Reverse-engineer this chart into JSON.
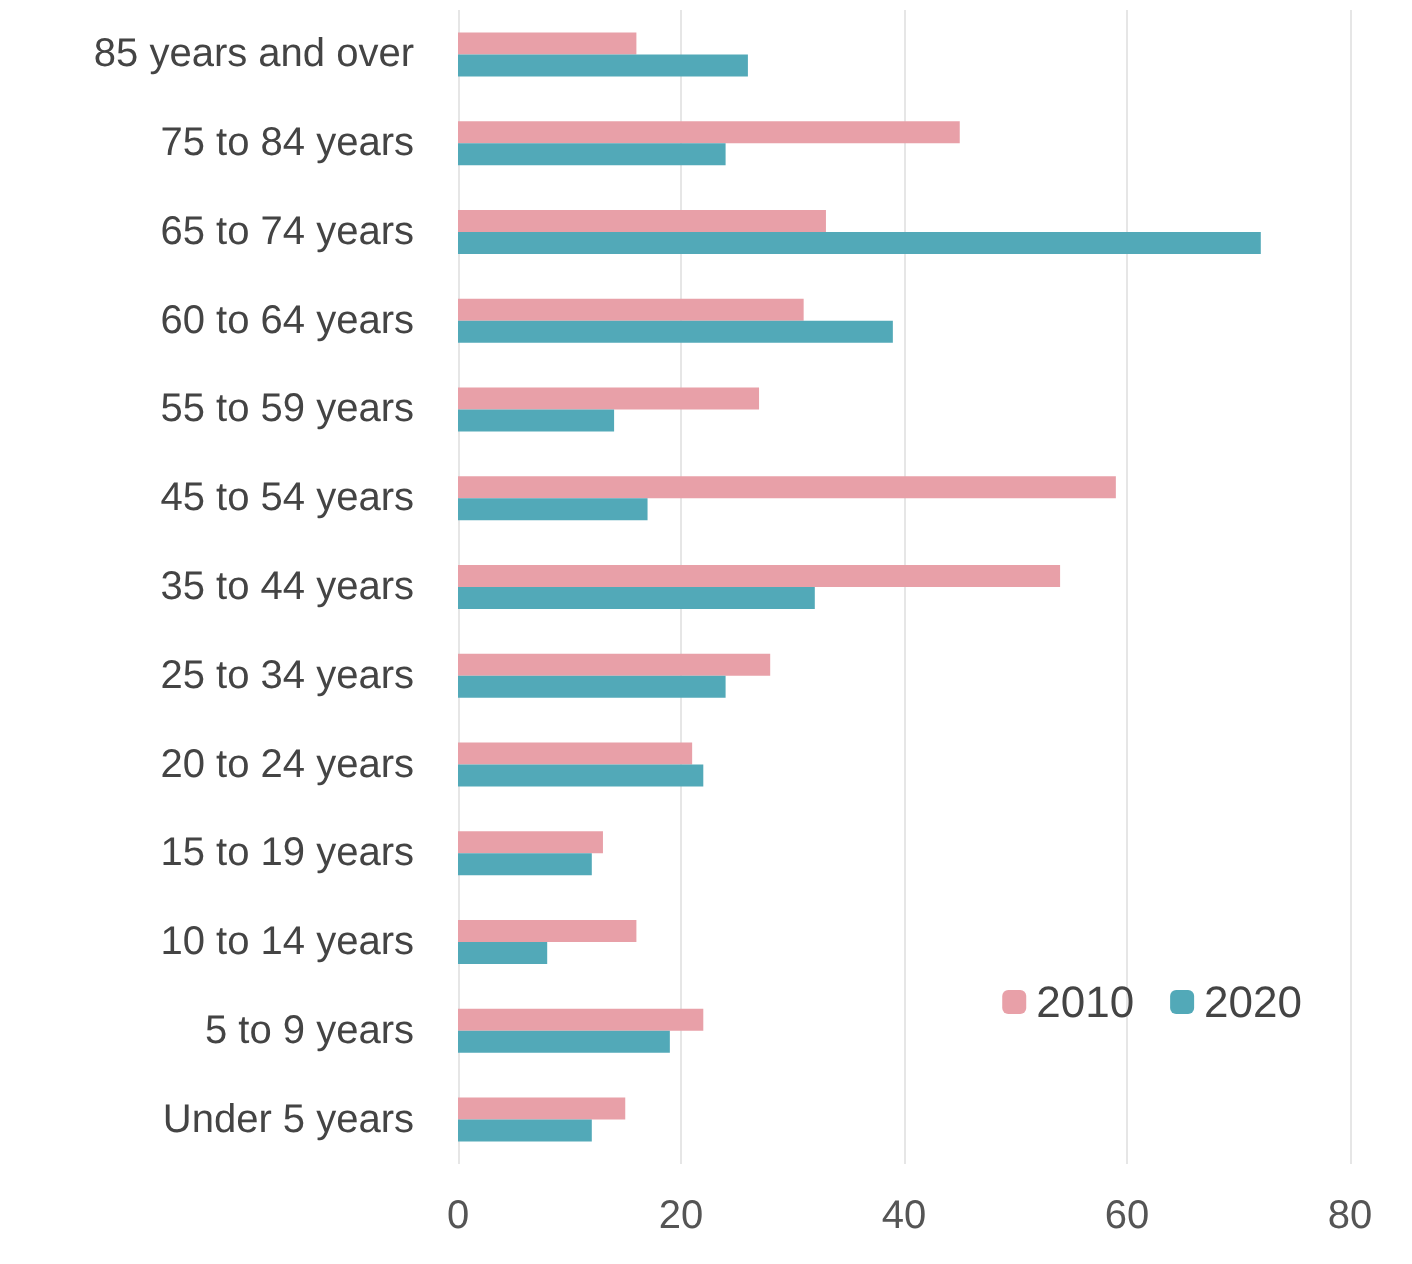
{
  "chart_data": {
    "type": "bar",
    "orientation": "horizontal",
    "categories": [
      "85 years and over",
      "75 to 84 years",
      "65 to 74 years",
      "60 to 64 years",
      "55 to 59 years",
      "45 to 54 years",
      "35 to 44 years",
      "25 to 34 years",
      "20 to 24 years",
      "15 to 19 years",
      "10 to 14 years",
      "5 to 9 years",
      "Under 5 years"
    ],
    "series": [
      {
        "name": "2010",
        "color": "#e8a0a8",
        "values": [
          16,
          45,
          33,
          31,
          27,
          59,
          54,
          28,
          21,
          13,
          16,
          22,
          15
        ]
      },
      {
        "name": "2020",
        "color": "#52a9b8",
        "values": [
          26,
          24,
          72,
          39,
          14,
          17,
          32,
          24,
          22,
          12,
          8,
          19,
          12
        ]
      }
    ],
    "xlim": [
      0,
      80
    ],
    "xticks": [
      0,
      20,
      40,
      60,
      80
    ],
    "grid": "x",
    "legend": "bottom right"
  }
}
